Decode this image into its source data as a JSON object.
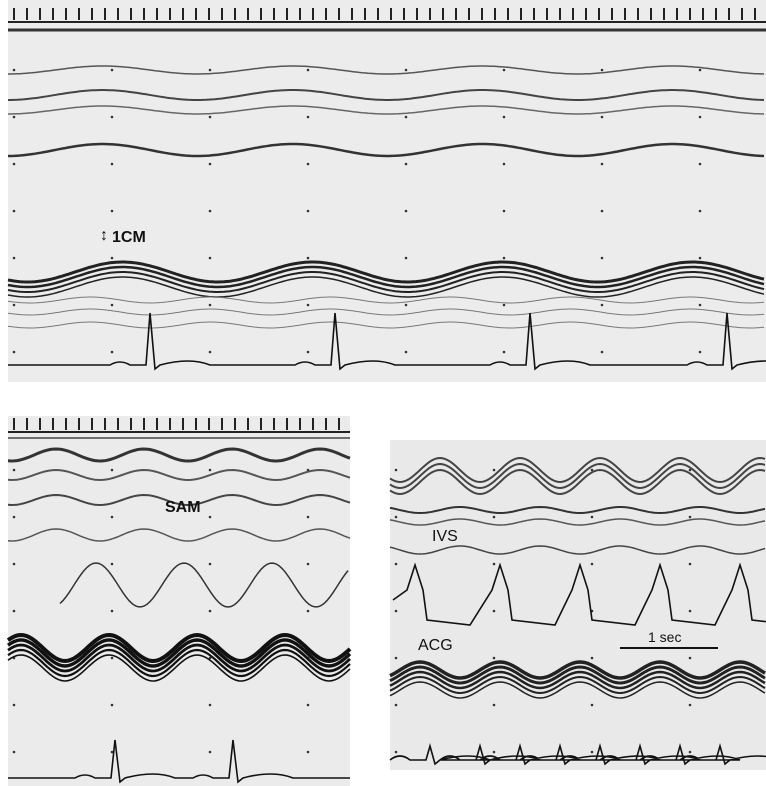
{
  "panels": {
    "top": {
      "label": "1CM"
    },
    "bottom_left": {
      "label": "SAM"
    },
    "bottom_right": {
      "labels": [
        "IVS",
        "ACG",
        "1 sec"
      ]
    }
  }
}
